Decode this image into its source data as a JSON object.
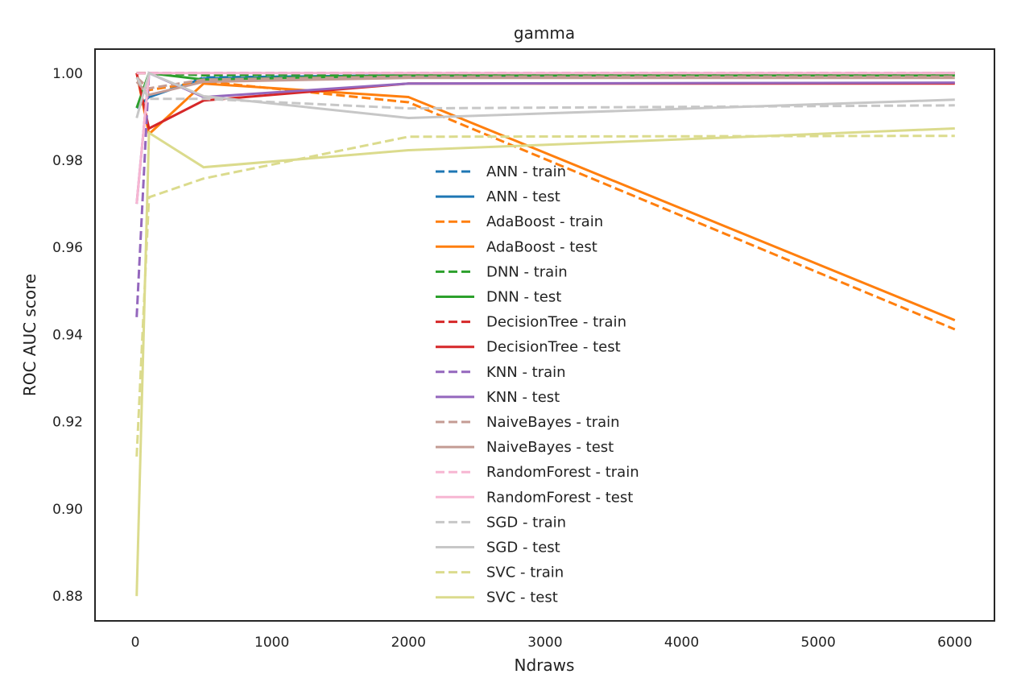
{
  "chart_data": {
    "type": "line",
    "title": "gamma",
    "xlabel": "Ndraws",
    "ylabel": "ROC AUC score",
    "xlim": [
      -295,
      6290
    ],
    "ylim": [
      0.8743,
      1.0055
    ],
    "xticks": [
      0,
      1000,
      2000,
      3000,
      4000,
      5000,
      6000
    ],
    "xtick_labels": [
      "0",
      "1000",
      "2000",
      "3000",
      "4000",
      "5000",
      "6000"
    ],
    "yticks": [
      0.88,
      0.9,
      0.92,
      0.94,
      0.96,
      0.98,
      1.0
    ],
    "ytick_labels": [
      "0.88",
      "0.90",
      "0.92",
      "0.94",
      "0.96",
      "0.98",
      "1.00"
    ],
    "grid": false,
    "legend_position": "center",
    "x": [
      10,
      100,
      500,
      2000,
      6000
    ],
    "series": [
      {
        "name": "ANN - train",
        "color": "#1f77b4",
        "dash": true,
        "values": [
          0.992,
          0.9945,
          0.999,
          0.9995,
          1.0
        ]
      },
      {
        "name": "ANN - test",
        "color": "#1f77b4",
        "dash": false,
        "values": [
          0.992,
          0.9945,
          0.9988,
          0.9993,
          0.9998
        ]
      },
      {
        "name": "AdaBoost - train",
        "color": "#ff7f0e",
        "dash": true,
        "values": [
          0.999,
          0.9961,
          0.9981,
          0.9933,
          0.9412
        ]
      },
      {
        "name": "AdaBoost - test",
        "color": "#ff7f0e",
        "dash": false,
        "values": [
          1.0,
          0.986,
          0.9976,
          0.9945,
          0.9433
        ]
      },
      {
        "name": "DNN - train",
        "color": "#2ca02c",
        "dash": true,
        "values": [
          1.0,
          1.0,
          0.9995,
          0.9997,
          1.0
        ]
      },
      {
        "name": "DNN - test",
        "color": "#2ca02c",
        "dash": false,
        "values": [
          0.992,
          1.0,
          0.9985,
          0.9995,
          0.9995
        ]
      },
      {
        "name": "DecisionTree - train",
        "color": "#d62728",
        "dash": true,
        "values": [
          1.0,
          1.0,
          1.0,
          1.0,
          1.0
        ]
      },
      {
        "name": "DecisionTree - test",
        "color": "#d62728",
        "dash": false,
        "values": [
          1.0,
          0.9873,
          0.9937,
          0.9976,
          0.9976
        ]
      },
      {
        "name": "KNN - train",
        "color": "#9467bd",
        "dash": true,
        "values": [
          0.944,
          1.0,
          1.0,
          1.0,
          1.0
        ]
      },
      {
        "name": "KNN - test",
        "color": "#9467bd",
        "dash": false,
        "values": [
          0.97,
          1.0,
          0.9945,
          0.9976,
          0.9978
        ]
      },
      {
        "name": "NaiveBayes - train",
        "color": "#c49c94",
        "dash": true,
        "values": [
          0.999,
          0.9965,
          0.9985,
          0.9992,
          0.9992
        ]
      },
      {
        "name": "NaiveBayes - test",
        "color": "#c49c94",
        "dash": false,
        "values": [
          0.998,
          0.995,
          0.998,
          0.9989,
          0.9989
        ]
      },
      {
        "name": "RandomForest - train",
        "color": "#f7b6d2",
        "dash": true,
        "values": [
          1.0,
          1.0,
          1.0,
          1.0,
          1.0
        ]
      },
      {
        "name": "RandomForest - test",
        "color": "#f7b6d2",
        "dash": false,
        "values": [
          0.97,
          1.0,
          1.0,
          1.0,
          1.0
        ]
      },
      {
        "name": "SGD - train",
        "color": "#c7c7c7",
        "dash": true,
        "values": [
          0.999,
          0.9941,
          0.9941,
          0.9919,
          0.9926
        ]
      },
      {
        "name": "SGD - test",
        "color": "#c7c7c7",
        "dash": false,
        "values": [
          0.9897,
          1.0,
          0.9947,
          0.9897,
          0.9939
        ]
      },
      {
        "name": "SVC - train",
        "color": "#dbdb8d",
        "dash": true,
        "values": [
          0.912,
          0.9715,
          0.9758,
          0.9854,
          0.9856
        ]
      },
      {
        "name": "SVC - test",
        "color": "#dbdb8d",
        "dash": false,
        "values": [
          0.88,
          0.9863,
          0.9784,
          0.9823,
          0.9873
        ]
      }
    ]
  }
}
